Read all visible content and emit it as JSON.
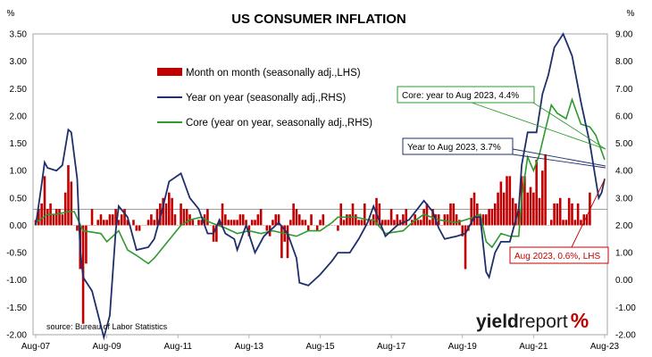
{
  "chart_data": {
    "type": "bar+line",
    "title": "US CONSUMER INFLATION",
    "left_unit": "%",
    "right_unit": "%",
    "source": "source: Bureau of Labor Statistics",
    "logo": {
      "part1": "yield",
      "part2": "report",
      "part3": "%"
    },
    "left_axis": {
      "min": -2.0,
      "max": 3.5,
      "step": 0.5,
      "ticks": [
        "3.50",
        "3.00",
        "2.50",
        "2.00",
        "1.50",
        "1.00",
        "0.50",
        "0.00",
        "-0.50",
        "-1.00",
        "-1.50",
        "-2.00"
      ]
    },
    "right_axis": {
      "min": -2.0,
      "max": 9.0,
      "step": 1.0,
      "ticks": [
        "9.00",
        "8.00",
        "7.00",
        "6.00",
        "5.00",
        "4.00",
        "3.00",
        "2.00",
        "1.00",
        "0.00",
        "-1.00",
        "-2.00"
      ]
    },
    "x_ticks": [
      "Aug-07",
      "Aug-09",
      "Aug-11",
      "Aug-13",
      "Aug-15",
      "Aug-17",
      "Aug-19",
      "Aug-21",
      "Aug-23"
    ],
    "x_range": [
      "2007-08",
      "2023-08"
    ],
    "grid": false,
    "legend": {
      "position": "top-center",
      "items": [
        {
          "label": "Month on month (seasonally adj.,LHS)",
          "type": "bar",
          "color": "#c00000"
        },
        {
          "label": "Year on year (seasonally adj.,RHS)",
          "type": "line",
          "color": "#1f2f6b"
        },
        {
          "label": "Core (year on year, seasonally adj.,RHS)",
          "type": "line",
          "color": "#2e9a2e"
        }
      ]
    },
    "annotations": [
      {
        "text": "Core: year to Aug 2023, 4.4%",
        "color": "#2e9a2e",
        "point": {
          "date": "2023-08",
          "value": 4.4,
          "axis": "RHS"
        }
      },
      {
        "text": "Year to Aug 2023, 3.7%",
        "color": "#1f2f6b",
        "point": {
          "date": "2023-08",
          "value": 3.7,
          "axis": "RHS"
        }
      },
      {
        "text": "Aug 2023, 0.6%, LHS",
        "color": "#c00000",
        "point": {
          "date": "2023-08",
          "value": 0.6,
          "axis": "LHS"
        }
      }
    ],
    "series": [
      {
        "name": "Month on month (seasonally adj.,LHS)",
        "kind": "bar",
        "axis": "LHS",
        "color": "#c00000",
        "start": "2007-08",
        "values": [
          0.1,
          0.3,
          0.4,
          0.9,
          0.3,
          0.4,
          0.2,
          0.3,
          0.3,
          0.2,
          0.6,
          1.1,
          0.8,
          0.0,
          -0.1,
          -0.8,
          -1.8,
          -0.7,
          0.0,
          0.3,
          0.0,
          0.1,
          0.2,
          0.1,
          0.1,
          0.2,
          0.2,
          0.3,
          0.1,
          0.2,
          0.3,
          0.1,
          0.0,
          0.1,
          -0.1,
          -0.1,
          0.0,
          0.0,
          0.1,
          0.2,
          0.1,
          0.3,
          0.4,
          0.5,
          0.4,
          0.6,
          0.5,
          0.2,
          0.0,
          0.4,
          0.3,
          0.3,
          0.2,
          0.1,
          0.0,
          0.1,
          0.1,
          0.2,
          0.3,
          0.0,
          -0.3,
          -0.3,
          0.1,
          0.4,
          0.2,
          0.1,
          0.1,
          0.1,
          0.1,
          0.2,
          0.2,
          0.1,
          -0.2,
          0.1,
          0.1,
          0.2,
          0.3,
          0.0,
          -0.1,
          -0.2,
          0.1,
          0.2,
          0.2,
          -0.6,
          -0.3,
          -0.6,
          0.1,
          0.4,
          0.3,
          0.2,
          0.1,
          0.1,
          -0.1,
          0.2,
          0.0,
          -0.1,
          0.1,
          0.2,
          0.0,
          0.0,
          0.0,
          0.0,
          -0.1,
          0.4,
          0.1,
          0.2,
          0.2,
          0.4,
          0.2,
          0.1,
          0.1,
          0.4,
          0.0,
          0.1,
          0.2,
          0.5,
          0.4,
          0.1,
          0.1,
          0.1,
          0.3,
          0.1,
          0.2,
          0.1,
          0.2,
          0.3,
          0.0,
          0.1,
          0.2,
          0.1,
          0.1,
          0.3,
          0.4,
          0.1,
          0.3,
          0.2,
          0.2,
          0.0,
          0.2,
          0.2,
          0.4,
          0.4,
          0.2,
          0.1,
          -0.2,
          -0.8,
          -0.1,
          0.5,
          0.6,
          0.4,
          0.2,
          0.2,
          0.2,
          0.3,
          0.3,
          0.4,
          0.6,
          0.8,
          0.6,
          0.9,
          0.9,
          0.5,
          0.4,
          0.3,
          0.9,
          0.9,
          0.6,
          0.7,
          0.6,
          1.2,
          0.5,
          1.0,
          1.3,
          0.0,
          0.1,
          0.4,
          0.4,
          0.5,
          0.1,
          0.1,
          0.5,
          0.4,
          0.1,
          0.4,
          0.1,
          0.2,
          0.2,
          0.6
        ]
      },
      {
        "name": "Year on year (seasonally adj.,RHS)",
        "kind": "line",
        "axis": "RHS",
        "color": "#1f2f6b",
        "points": [
          [
            "2007-08",
            2.0
          ],
          [
            "2007-10",
            3.5
          ],
          [
            "2007-11",
            4.3
          ],
          [
            "2007-12",
            4.1
          ],
          [
            "2008-03",
            4.0
          ],
          [
            "2008-05",
            4.2
          ],
          [
            "2008-07",
            5.5
          ],
          [
            "2008-08",
            5.4
          ],
          [
            "2008-10",
            3.7
          ],
          [
            "2008-11",
            1.1
          ],
          [
            "2008-12",
            0.1
          ],
          [
            "2009-03",
            -0.4
          ],
          [
            "2009-07",
            -2.1
          ],
          [
            "2009-09",
            -1.3
          ],
          [
            "2009-11",
            1.8
          ],
          [
            "2009-12",
            2.7
          ],
          [
            "2010-03",
            2.3
          ],
          [
            "2010-06",
            1.1
          ],
          [
            "2010-10",
            1.2
          ],
          [
            "2010-12",
            1.5
          ],
          [
            "2011-03",
            2.7
          ],
          [
            "2011-05",
            3.6
          ],
          [
            "2011-09",
            3.9
          ],
          [
            "2011-12",
            3.0
          ],
          [
            "2012-03",
            2.6
          ],
          [
            "2012-06",
            1.7
          ],
          [
            "2012-08",
            1.7
          ],
          [
            "2012-10",
            2.2
          ],
          [
            "2012-12",
            1.7
          ],
          [
            "2013-03",
            1.5
          ],
          [
            "2013-04",
            1.1
          ],
          [
            "2013-07",
            2.0
          ],
          [
            "2013-10",
            1.0
          ],
          [
            "2014-01",
            1.6
          ],
          [
            "2014-06",
            2.1
          ],
          [
            "2014-09",
            1.7
          ],
          [
            "2014-12",
            0.8
          ],
          [
            "2015-01",
            -0.1
          ],
          [
            "2015-04",
            -0.2
          ],
          [
            "2015-08",
            0.2
          ],
          [
            "2015-12",
            0.7
          ],
          [
            "2016-02",
            1.0
          ],
          [
            "2016-06",
            1.0
          ],
          [
            "2016-09",
            1.5
          ],
          [
            "2016-12",
            2.1
          ],
          [
            "2017-02",
            2.7
          ],
          [
            "2017-06",
            1.6
          ],
          [
            "2017-10",
            2.0
          ],
          [
            "2018-02",
            2.2
          ],
          [
            "2018-07",
            2.9
          ],
          [
            "2018-10",
            2.5
          ],
          [
            "2018-12",
            1.9
          ],
          [
            "2019-02",
            1.5
          ],
          [
            "2019-06",
            1.6
          ],
          [
            "2019-09",
            1.7
          ],
          [
            "2019-12",
            2.3
          ],
          [
            "2020-02",
            2.3
          ],
          [
            "2020-04",
            0.3
          ],
          [
            "2020-05",
            0.1
          ],
          [
            "2020-07",
            1.0
          ],
          [
            "2020-09",
            1.4
          ],
          [
            "2020-12",
            1.4
          ],
          [
            "2021-03",
            2.6
          ],
          [
            "2021-04",
            4.2
          ],
          [
            "2021-06",
            5.4
          ],
          [
            "2021-09",
            5.4
          ],
          [
            "2021-11",
            6.8
          ],
          [
            "2022-01",
            7.5
          ],
          [
            "2022-03",
            8.5
          ],
          [
            "2022-06",
            9.0
          ],
          [
            "2022-09",
            8.2
          ],
          [
            "2022-12",
            6.5
          ],
          [
            "2023-03",
            5.0
          ],
          [
            "2023-06",
            3.0
          ],
          [
            "2023-07",
            3.2
          ],
          [
            "2023-08",
            3.7
          ]
        ]
      },
      {
        "name": "Core (year on year, seasonally adj.,RHS)",
        "kind": "line",
        "axis": "RHS",
        "color": "#2e9a2e",
        "points": [
          [
            "2007-08",
            2.1
          ],
          [
            "2007-12",
            2.4
          ],
          [
            "2008-03",
            2.4
          ],
          [
            "2008-07",
            2.5
          ],
          [
            "2008-09",
            2.5
          ],
          [
            "2008-12",
            1.8
          ],
          [
            "2009-06",
            1.7
          ],
          [
            "2009-08",
            1.4
          ],
          [
            "2009-12",
            1.8
          ],
          [
            "2010-03",
            1.1
          ],
          [
            "2010-06",
            0.9
          ],
          [
            "2010-10",
            0.6
          ],
          [
            "2010-12",
            0.8
          ],
          [
            "2011-03",
            1.2
          ],
          [
            "2011-06",
            1.6
          ],
          [
            "2011-09",
            2.0
          ],
          [
            "2011-12",
            2.2
          ],
          [
            "2012-04",
            2.3
          ],
          [
            "2012-07",
            2.1
          ],
          [
            "2012-12",
            1.9
          ],
          [
            "2013-04",
            1.7
          ],
          [
            "2013-08",
            1.8
          ],
          [
            "2013-12",
            1.7
          ],
          [
            "2014-04",
            1.8
          ],
          [
            "2014-08",
            1.7
          ],
          [
            "2014-12",
            1.6
          ],
          [
            "2015-04",
            1.8
          ],
          [
            "2015-08",
            1.8
          ],
          [
            "2015-12",
            2.1
          ],
          [
            "2016-02",
            2.3
          ],
          [
            "2016-08",
            2.3
          ],
          [
            "2016-12",
            2.2
          ],
          [
            "2017-02",
            2.2
          ],
          [
            "2017-06",
            1.7
          ],
          [
            "2017-12",
            1.8
          ],
          [
            "2018-03",
            2.1
          ],
          [
            "2018-07",
            2.4
          ],
          [
            "2018-12",
            2.2
          ],
          [
            "2019-06",
            2.1
          ],
          [
            "2019-12",
            2.3
          ],
          [
            "2020-02",
            2.4
          ],
          [
            "2020-04",
            1.4
          ],
          [
            "2020-06",
            1.2
          ],
          [
            "2020-09",
            1.7
          ],
          [
            "2020-12",
            1.6
          ],
          [
            "2021-03",
            1.6
          ],
          [
            "2021-04",
            3.0
          ],
          [
            "2021-06",
            4.5
          ],
          [
            "2021-08",
            4.0
          ],
          [
            "2021-10",
            4.6
          ],
          [
            "2021-12",
            5.5
          ],
          [
            "2022-02",
            6.4
          ],
          [
            "2022-04",
            6.1
          ],
          [
            "2022-07",
            5.9
          ],
          [
            "2022-09",
            6.6
          ],
          [
            "2022-12",
            5.7
          ],
          [
            "2023-03",
            5.6
          ],
          [
            "2023-05",
            5.3
          ],
          [
            "2023-07",
            4.7
          ],
          [
            "2023-08",
            4.4
          ]
        ]
      }
    ]
  }
}
